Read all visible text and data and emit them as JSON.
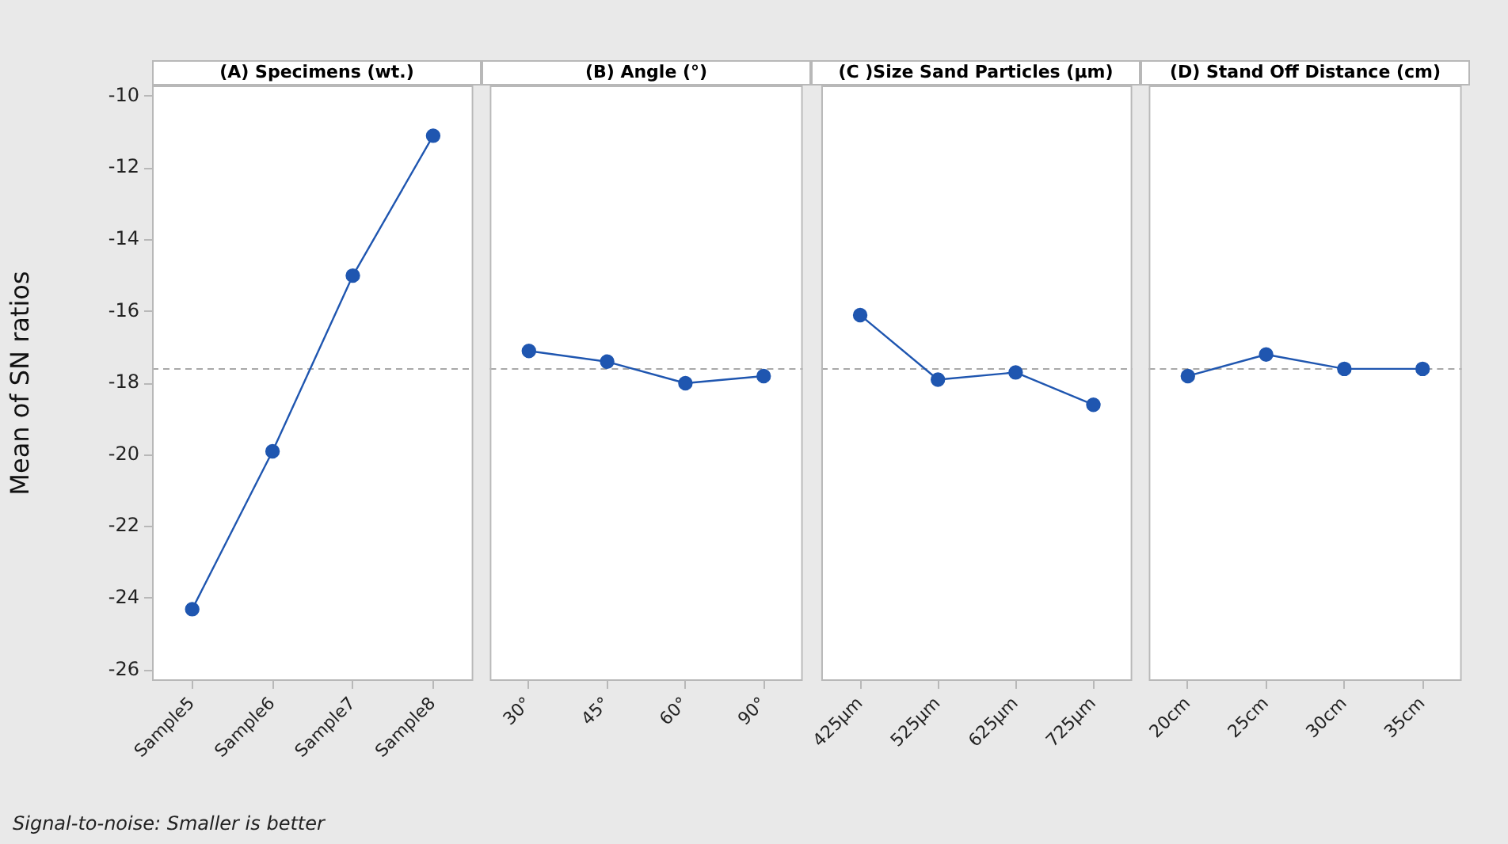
{
  "chart_data": [
    {
      "type": "line",
      "title": "(A) Specimens (wt.)",
      "ylabel": "Mean of SN ratios",
      "categories": [
        "Sample5",
        "Sample6",
        "Sample7",
        "Sample8"
      ],
      "values": [
        -24.3,
        -19.9,
        -15.0,
        -11.1
      ],
      "color": "#1f56b0",
      "marker": "circle",
      "ylim": [
        -26.3,
        -9.7
      ],
      "yticks": [
        -26,
        -24,
        -22,
        -20,
        -18,
        -16,
        -14,
        -12,
        -10
      ],
      "ref_lines": [
        {
          "axis": "y",
          "value": -17.6,
          "color": "#a8a8a8",
          "line_style": "dashed"
        }
      ],
      "annotations": [
        "Signal-to-noise: Smaller is better"
      ]
    },
    {
      "type": "line",
      "title": "(B) Angle (°)",
      "categories": [
        "30°",
        "45°",
        "60°",
        "90°"
      ],
      "values": [
        -17.1,
        -17.4,
        -18.0,
        -17.8
      ],
      "color": "#1f56b0",
      "marker": "circle",
      "ylim": [
        -26.3,
        -9.7
      ],
      "yticks": [
        -26,
        -24,
        -22,
        -20,
        -18,
        -16,
        -14,
        -12,
        -10
      ],
      "tick_labels": "x",
      "ref_lines": [
        {
          "axis": "y",
          "value": -17.6,
          "color": "#a8a8a8",
          "line_style": "dashed"
        }
      ]
    },
    {
      "type": "line",
      "title": "(C )Size Sand Particles (μm)",
      "categories": [
        "425μm",
        "525μm",
        "625μm",
        "725μm"
      ],
      "values": [
        -16.1,
        -17.9,
        -17.7,
        -18.6
      ],
      "color": "#1f56b0",
      "marker": "circle",
      "ylim": [
        -26.3,
        -9.7
      ],
      "yticks": [
        -26,
        -24,
        -22,
        -20,
        -18,
        -16,
        -14,
        -12,
        -10
      ],
      "tick_labels": "x",
      "ref_lines": [
        {
          "axis": "y",
          "value": -17.6,
          "color": "#a8a8a8",
          "line_style": "dashed"
        }
      ]
    },
    {
      "type": "line",
      "title": "(D) Stand Off Distance (cm)",
      "categories": [
        "20cm",
        "25cm",
        "30cm",
        "35cm"
      ],
      "values": [
        -17.8,
        -17.2,
        -17.6,
        -17.6
      ],
      "color": "#1f56b0",
      "marker": "circle",
      "ylim": [
        -26.3,
        -9.7
      ],
      "yticks": [
        -26,
        -24,
        -22,
        -20,
        -18,
        -16,
        -14,
        -12,
        -10
      ],
      "tick_labels": "x",
      "ref_lines": [
        {
          "axis": "y",
          "value": -17.6,
          "color": "#a8a8a8",
          "line_style": "dashed"
        }
      ]
    }
  ]
}
